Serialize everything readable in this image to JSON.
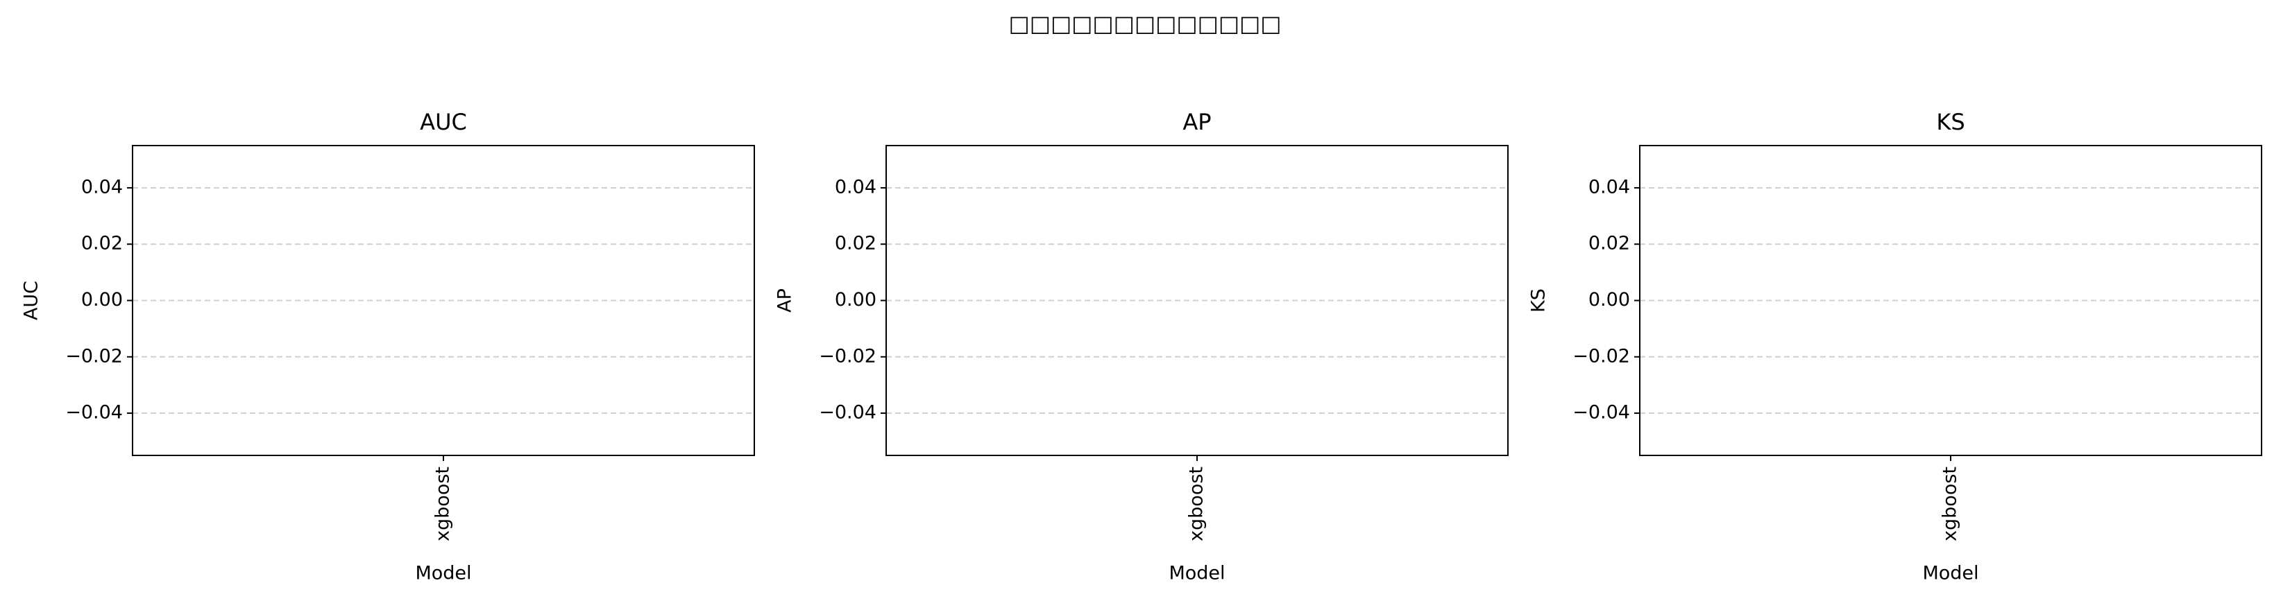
{
  "title": "□□□□□□□□□□□□□",
  "chart_data": [
    {
      "type": "bar",
      "title": "AUC",
      "xlabel": "Model",
      "ylabel": "AUC",
      "categories": [
        "xgboost"
      ],
      "values": [
        null
      ],
      "color": "#1f77b4",
      "ylim": [
        -0.055,
        0.055
      ],
      "yticks": [
        {
          "value": -0.04,
          "label": "−0.04"
        },
        {
          "value": -0.02,
          "label": "−0.02"
        },
        {
          "value": 0,
          "label": "0.00"
        },
        {
          "value": 0.02,
          "label": "0.02"
        },
        {
          "value": 0.04,
          "label": "0.04"
        }
      ],
      "grid": true
    },
    {
      "type": "bar",
      "title": "AP",
      "xlabel": "Model",
      "ylabel": "AP",
      "categories": [
        "xgboost"
      ],
      "values": [
        null
      ],
      "color": "#1f77b4",
      "ylim": [
        -0.055,
        0.055
      ],
      "yticks": [
        {
          "value": -0.04,
          "label": "−0.04"
        },
        {
          "value": -0.02,
          "label": "−0.02"
        },
        {
          "value": 0,
          "label": "0.00"
        },
        {
          "value": 0.02,
          "label": "0.02"
        },
        {
          "value": 0.04,
          "label": "0.04"
        }
      ],
      "grid": true
    },
    {
      "type": "bar",
      "title": "KS",
      "xlabel": "Model",
      "ylabel": "KS",
      "categories": [
        "xgboost"
      ],
      "values": [
        null
      ],
      "color": "#1f77b4",
      "ylim": [
        -0.055,
        0.055
      ],
      "yticks": [
        {
          "value": -0.04,
          "label": "−0.04"
        },
        {
          "value": -0.02,
          "label": "−0.02"
        },
        {
          "value": 0,
          "label": "0.00"
        },
        {
          "value": 0.02,
          "label": "0.02"
        },
        {
          "value": 0.04,
          "label": "0.04"
        }
      ],
      "grid": true
    }
  ]
}
